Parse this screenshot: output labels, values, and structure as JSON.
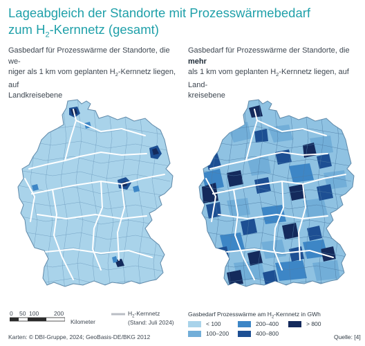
{
  "title_line1": "Lageabgleich der Standorte mit Prozesswärmebedarf",
  "title_line2_pre": "zum H",
  "title_line2_sub": "2",
  "title_line2_post": "-Kernnetz (gesamt)",
  "left": {
    "subtitle_a": "Gasbedarf für Prozesswärme der Standorte, die we-",
    "subtitle_b": "niger als 1 km vom geplanten H",
    "subtitle_sub": "2",
    "subtitle_c": "-Kernnetz liegen, auf",
    "subtitle_d": "Landkreisebene"
  },
  "right": {
    "subtitle_a": "Gasbedarf für Prozesswärme der Standorte, die ",
    "subtitle_bold": "mehr",
    "subtitle_b": "als 1 km vom geplanten H",
    "subtitle_sub": "2",
    "subtitle_c": "-Kernnetz liegen, auf Land-",
    "subtitle_d": "kreisebene"
  },
  "scalebar": {
    "ticks": [
      "0",
      "50",
      "100",
      "200"
    ],
    "unit": "Kilometer"
  },
  "network_legend": {
    "label_pre": "H",
    "label_sub": "2",
    "label_post": "-Kernnetz",
    "date": "(Stand: Juli 2024)"
  },
  "legend": {
    "title_pre": "Gasbedarf Prozesswärme am H",
    "title_sub": "2",
    "title_post": "-Kernnetz in GWh",
    "classes": [
      {
        "label": "< 100",
        "color": "#a9d3ea"
      },
      {
        "label": "100–200",
        "color": "#72aed8"
      },
      {
        "label": "200–400",
        "color": "#3d86c6"
      },
      {
        "label": "400–800",
        "color": "#1d4f93"
      },
      {
        "label": "> 800",
        "color": "#142a5c"
      }
    ]
  },
  "footer": "Karten: © DBI-Gruppe, 2024; GeoBasis-DE/BKG 2012",
  "source": "Quelle: [4]"
}
